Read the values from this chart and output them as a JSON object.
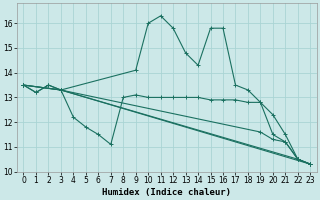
{
  "xlabel": "Humidex (Indice chaleur)",
  "bg_color": "#cce8e8",
  "grid_color": "#aad4d4",
  "line_color": "#1a7060",
  "xlim": [
    -0.5,
    23.5
  ],
  "ylim": [
    10,
    16.8
  ],
  "yticks": [
    10,
    11,
    12,
    13,
    14,
    15,
    16
  ],
  "xticks": [
    0,
    1,
    2,
    3,
    4,
    5,
    6,
    7,
    8,
    9,
    10,
    11,
    12,
    13,
    14,
    15,
    16,
    17,
    18,
    19,
    20,
    21,
    22,
    23
  ],
  "lines": [
    {
      "x": [
        0,
        1,
        2,
        3,
        4,
        5,
        6,
        7,
        8,
        9,
        10,
        11,
        12,
        13,
        14,
        15,
        16,
        17,
        18,
        19,
        20,
        21,
        22,
        23
      ],
      "y": [
        13.5,
        13.2,
        13.5,
        13.3,
        12.2,
        11.8,
        11.5,
        11.1,
        13.0,
        13.1,
        13.0,
        13.0,
        13.0,
        13.0,
        13.0,
        12.9,
        12.9,
        12.9,
        12.8,
        12.8,
        11.5,
        11.2,
        10.5,
        10.3
      ]
    },
    {
      "x": [
        0,
        1,
        2,
        3,
        9,
        10,
        11,
        12,
        13,
        14,
        15,
        16,
        17,
        18,
        19,
        20,
        21,
        22,
        23
      ],
      "y": [
        13.5,
        13.2,
        13.5,
        13.3,
        14.1,
        16.0,
        16.3,
        15.8,
        14.8,
        14.3,
        15.8,
        15.8,
        13.5,
        13.3,
        12.8,
        12.3,
        11.5,
        10.5,
        10.3
      ]
    },
    {
      "x": [
        0,
        3,
        23
      ],
      "y": [
        13.5,
        13.3,
        10.3
      ]
    },
    {
      "x": [
        0,
        3,
        22,
        23
      ],
      "y": [
        13.5,
        13.3,
        10.5,
        10.3
      ]
    },
    {
      "x": [
        0,
        3,
        19,
        20,
        21,
        22,
        23
      ],
      "y": [
        13.5,
        13.3,
        11.6,
        11.3,
        11.2,
        10.5,
        10.3
      ]
    }
  ]
}
